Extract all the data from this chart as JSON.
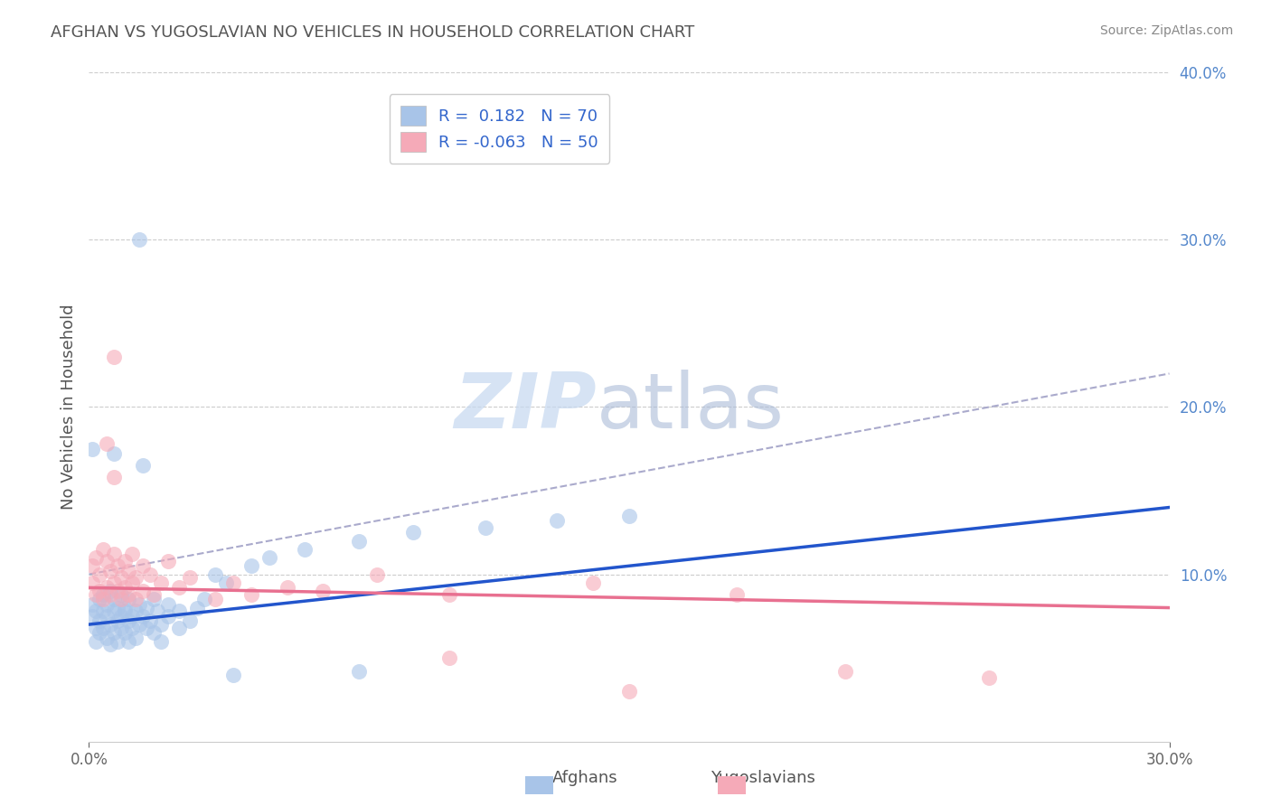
{
  "title": "AFGHAN VS YUGOSLAVIAN NO VEHICLES IN HOUSEHOLD CORRELATION CHART",
  "source": "Source: ZipAtlas.com",
  "xlabel_label": "Afghans",
  "ylabel_label": "No Vehicles in Household",
  "xlabel2_label": "Yugoslavians",
  "x_min": 0.0,
  "x_max": 0.3,
  "y_min": 0.0,
  "y_max": 0.4,
  "afghan_R": 0.182,
  "afghan_N": 70,
  "yugoslav_R": -0.063,
  "yugoslav_N": 50,
  "watermark_zip": "ZIP",
  "watermark_atlas": "atlas",
  "afghan_color": "#a8c4e8",
  "yugoslav_color": "#f5aab8",
  "afghan_line_color": "#2255cc",
  "yugoslav_line_color": "#e87090",
  "dash_line_color": "#aaaacc",
  "grid_color": "#cccccc",
  "background_color": "#ffffff",
  "title_color": "#555555",
  "legend_color": "#3366cc",
  "tick_color": "#5588cc",
  "afghan_scatter": [
    [
      0.001,
      0.075
    ],
    [
      0.001,
      0.082
    ],
    [
      0.002,
      0.068
    ],
    [
      0.002,
      0.078
    ],
    [
      0.002,
      0.06
    ],
    [
      0.003,
      0.072
    ],
    [
      0.003,
      0.085
    ],
    [
      0.003,
      0.065
    ],
    [
      0.004,
      0.078
    ],
    [
      0.004,
      0.068
    ],
    [
      0.004,
      0.088
    ],
    [
      0.005,
      0.075
    ],
    [
      0.005,
      0.062
    ],
    [
      0.005,
      0.082
    ],
    [
      0.006,
      0.07
    ],
    [
      0.006,
      0.09
    ],
    [
      0.006,
      0.058
    ],
    [
      0.007,
      0.078
    ],
    [
      0.007,
      0.065
    ],
    [
      0.007,
      0.085
    ],
    [
      0.007,
      0.172
    ],
    [
      0.008,
      0.072
    ],
    [
      0.008,
      0.08
    ],
    [
      0.008,
      0.06
    ],
    [
      0.009,
      0.075
    ],
    [
      0.009,
      0.068
    ],
    [
      0.009,
      0.088
    ],
    [
      0.01,
      0.078
    ],
    [
      0.01,
      0.065
    ],
    [
      0.01,
      0.08
    ],
    [
      0.011,
      0.072
    ],
    [
      0.011,
      0.085
    ],
    [
      0.011,
      0.06
    ],
    [
      0.012,
      0.075
    ],
    [
      0.012,
      0.068
    ],
    [
      0.013,
      0.078
    ],
    [
      0.013,
      0.062
    ],
    [
      0.014,
      0.082
    ],
    [
      0.014,
      0.07
    ],
    [
      0.015,
      0.165
    ],
    [
      0.015,
      0.075
    ],
    [
      0.016,
      0.068
    ],
    [
      0.016,
      0.08
    ],
    [
      0.017,
      0.072
    ],
    [
      0.018,
      0.065
    ],
    [
      0.018,
      0.085
    ],
    [
      0.019,
      0.078
    ],
    [
      0.02,
      0.07
    ],
    [
      0.02,
      0.06
    ],
    [
      0.022,
      0.075
    ],
    [
      0.022,
      0.082
    ],
    [
      0.025,
      0.068
    ],
    [
      0.025,
      0.078
    ],
    [
      0.028,
      0.072
    ],
    [
      0.03,
      0.08
    ],
    [
      0.032,
      0.085
    ],
    [
      0.035,
      0.1
    ],
    [
      0.038,
      0.095
    ],
    [
      0.045,
      0.105
    ],
    [
      0.05,
      0.11
    ],
    [
      0.06,
      0.115
    ],
    [
      0.075,
      0.12
    ],
    [
      0.09,
      0.125
    ],
    [
      0.11,
      0.128
    ],
    [
      0.13,
      0.132
    ],
    [
      0.15,
      0.135
    ],
    [
      0.014,
      0.3
    ],
    [
      0.001,
      0.175
    ],
    [
      0.04,
      0.04
    ],
    [
      0.075,
      0.042
    ]
  ],
  "yugoslav_scatter": [
    [
      0.001,
      0.105
    ],
    [
      0.001,
      0.095
    ],
    [
      0.002,
      0.11
    ],
    [
      0.002,
      0.088
    ],
    [
      0.003,
      0.1
    ],
    [
      0.003,
      0.09
    ],
    [
      0.004,
      0.115
    ],
    [
      0.004,
      0.085
    ],
    [
      0.005,
      0.108
    ],
    [
      0.005,
      0.092
    ],
    [
      0.005,
      0.178
    ],
    [
      0.006,
      0.102
    ],
    [
      0.006,
      0.088
    ],
    [
      0.007,
      0.112
    ],
    [
      0.007,
      0.095
    ],
    [
      0.007,
      0.158
    ],
    [
      0.008,
      0.105
    ],
    [
      0.008,
      0.09
    ],
    [
      0.009,
      0.098
    ],
    [
      0.009,
      0.085
    ],
    [
      0.01,
      0.108
    ],
    [
      0.01,
      0.092
    ],
    [
      0.011,
      0.102
    ],
    [
      0.011,
      0.088
    ],
    [
      0.012,
      0.112
    ],
    [
      0.012,
      0.095
    ],
    [
      0.013,
      0.098
    ],
    [
      0.013,
      0.085
    ],
    [
      0.015,
      0.105
    ],
    [
      0.015,
      0.09
    ],
    [
      0.017,
      0.1
    ],
    [
      0.018,
      0.088
    ],
    [
      0.02,
      0.095
    ],
    [
      0.022,
      0.108
    ],
    [
      0.025,
      0.092
    ],
    [
      0.028,
      0.098
    ],
    [
      0.035,
      0.085
    ],
    [
      0.04,
      0.095
    ],
    [
      0.045,
      0.088
    ],
    [
      0.055,
      0.092
    ],
    [
      0.065,
      0.09
    ],
    [
      0.08,
      0.1
    ],
    [
      0.1,
      0.088
    ],
    [
      0.14,
      0.095
    ],
    [
      0.18,
      0.088
    ],
    [
      0.21,
      0.042
    ],
    [
      0.25,
      0.038
    ],
    [
      0.007,
      0.23
    ],
    [
      0.1,
      0.05
    ],
    [
      0.15,
      0.03
    ]
  ],
  "afghan_line_y0": 0.07,
  "afghan_line_y1": 0.14,
  "yugoslav_line_y0": 0.092,
  "yugoslav_line_y1": 0.08,
  "dash_line_y0": 0.1,
  "dash_line_y1": 0.22
}
